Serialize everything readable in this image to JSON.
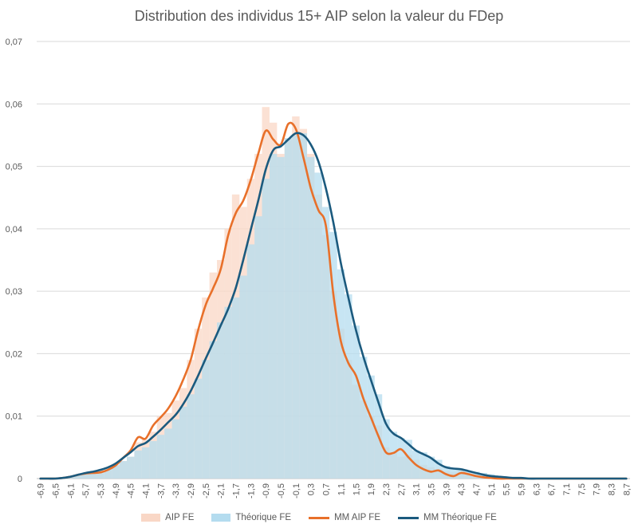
{
  "chart_data": {
    "type": "bar",
    "title": "Distribution des individus 15+ AIP selon la valeur du FDep",
    "xlabel": "",
    "ylabel": "",
    "ylim": [
      0,
      0.07
    ],
    "y_ticks": [
      "0",
      "0,01",
      "0,02",
      "0,03",
      "0,04",
      "0,05",
      "0,06",
      "0,07"
    ],
    "x_tick_labels": [
      "-6,9",
      "-6,5",
      "-6,1",
      "-5,7",
      "-5,3",
      "-4,9",
      "-4,5",
      "-4,1",
      "-3,7",
      "-3,3",
      "-2,9",
      "-2,5",
      "-2,1",
      "-1,7",
      "-1,3",
      "-0,9",
      "-0,5",
      "-0,1",
      "0,3",
      "0,7",
      "1,1",
      "1,5",
      "1,9",
      "2,3",
      "2,7",
      "3,1",
      "3,5",
      "3,9",
      "4,3",
      "4,7",
      "5,1",
      "5,5",
      "5,9",
      "6,3",
      "6,7",
      "7,1",
      "7,5",
      "7,9",
      "8,3",
      "8,7"
    ],
    "x": [
      -6.9,
      -6.7,
      -6.5,
      -6.3,
      -6.1,
      -5.9,
      -5.7,
      -5.5,
      -5.3,
      -5.1,
      -4.9,
      -4.7,
      -4.5,
      -4.3,
      -4.1,
      -3.9,
      -3.7,
      -3.5,
      -3.3,
      -3.1,
      -2.9,
      -2.7,
      -2.5,
      -2.3,
      -2.1,
      -1.9,
      -1.7,
      -1.5,
      -1.3,
      -1.1,
      -0.9,
      -0.7,
      -0.5,
      -0.3,
      -0.1,
      0.1,
      0.3,
      0.5,
      0.7,
      0.9,
      1.1,
      1.3,
      1.5,
      1.7,
      1.9,
      2.1,
      2.3,
      2.5,
      2.7,
      2.9,
      3.1,
      3.3,
      3.5,
      3.7,
      3.9,
      4.1,
      4.3,
      4.5,
      4.7,
      4.9,
      5.1,
      5.3,
      5.5,
      5.7,
      5.9,
      6.1,
      6.3,
      6.5,
      6.7,
      6.9,
      7.1,
      7.3,
      7.5,
      7.7,
      7.9,
      8.1,
      8.3,
      8.5,
      8.7
    ],
    "series": [
      {
        "name": "AIP FE",
        "type": "bar",
        "color": "#f9d7c6",
        "values": [
          0,
          0,
          0,
          0.0002,
          0.0004,
          0.0006,
          0.0009,
          0.001,
          0.0008,
          0.0013,
          0.002,
          0.0028,
          0.0035,
          0.0058,
          0.0062,
          0.0075,
          0.01,
          0.0105,
          0.0125,
          0.0145,
          0.019,
          0.024,
          0.029,
          0.033,
          0.035,
          0.04,
          0.0455,
          0.0435,
          0.048,
          0.052,
          0.0595,
          0.057,
          0.052,
          0.0545,
          0.058,
          0.056,
          0.052,
          0.0455,
          0.039,
          0.03,
          0.024,
          0.019,
          0.015,
          0.0125,
          0.01,
          0.0085,
          0.005,
          0.0042,
          0.0035,
          0.0038,
          0.003,
          0.0022,
          0.0018,
          0.0015,
          0.0012,
          0.001,
          0.0012,
          0.0008,
          0.0006,
          0.0004,
          0.0003,
          0.0002,
          0.0001,
          0.0001,
          0.0001,
          0.0001,
          0,
          0,
          0,
          0,
          0,
          0,
          0,
          0,
          0,
          0,
          0,
          0,
          0
        ]
      },
      {
        "name": "Théorique FE",
        "type": "bar",
        "color": "#b4dcef",
        "values": [
          0,
          0,
          0,
          0.0002,
          0.0004,
          0.0006,
          0.0009,
          0.0011,
          0.0014,
          0.0018,
          0.0022,
          0.0028,
          0.0035,
          0.0045,
          0.005,
          0.006,
          0.007,
          0.008,
          0.0095,
          0.0115,
          0.0135,
          0.016,
          0.019,
          0.022,
          0.025,
          0.0275,
          0.029,
          0.0325,
          0.0375,
          0.042,
          0.048,
          0.052,
          0.0515,
          0.0545,
          0.055,
          0.0553,
          0.0515,
          0.049,
          0.0435,
          0.0395,
          0.0335,
          0.0295,
          0.0245,
          0.0195,
          0.0165,
          0.0135,
          0.0095,
          0.0075,
          0.0065,
          0.0062,
          0.0045,
          0.0042,
          0.0035,
          0.003,
          0.002,
          0.0015,
          0.0015,
          0.0012,
          0.0011,
          0.0009,
          0.0007,
          0.0004,
          0.0003,
          0.0002,
          0.0001,
          0.0001,
          0,
          0,
          0,
          0,
          0,
          0,
          0,
          0,
          0,
          0,
          0,
          0,
          0
        ]
      },
      {
        "name": "MM AIP FE",
        "type": "line",
        "color": "#e8702a",
        "values": [
          0,
          0,
          0,
          0.0001,
          0.0003,
          0.0006,
          0.0008,
          0.0009,
          0.001,
          0.0014,
          0.0021,
          0.0033,
          0.0045,
          0.0066,
          0.0064,
          0.0085,
          0.0098,
          0.0112,
          0.0132,
          0.0158,
          0.019,
          0.0238,
          0.0278,
          0.0305,
          0.0335,
          0.039,
          0.0425,
          0.0445,
          0.0478,
          0.052,
          0.0557,
          0.0543,
          0.0535,
          0.0568,
          0.056,
          0.0515,
          0.0465,
          0.043,
          0.0405,
          0.0295,
          0.022,
          0.0185,
          0.0165,
          0.0128,
          0.0098,
          0.0068,
          0.0042,
          0.0041,
          0.0047,
          0.0034,
          0.0022,
          0.0015,
          0.0011,
          0.0013,
          0.0007,
          0.0004,
          0.0009,
          0.0007,
          0.0004,
          0.0002,
          0.0001,
          0,
          0,
          0,
          0,
          0,
          0,
          0,
          0,
          0,
          0,
          0,
          0,
          0,
          0,
          0,
          0,
          0,
          0
        ]
      },
      {
        "name": "MM Théorique FE",
        "type": "line",
        "color": "#1b5a7e",
        "values": [
          0,
          0,
          0,
          0.0001,
          0.0003,
          0.0006,
          0.0009,
          0.0011,
          0.0014,
          0.0018,
          0.0024,
          0.0033,
          0.0042,
          0.0052,
          0.0057,
          0.0067,
          0.0078,
          0.009,
          0.0102,
          0.0119,
          0.014,
          0.0165,
          0.0192,
          0.0218,
          0.0245,
          0.0272,
          0.0305,
          0.035,
          0.0398,
          0.0445,
          0.0495,
          0.0526,
          0.0532,
          0.0543,
          0.0553,
          0.055,
          0.0535,
          0.0508,
          0.0465,
          0.041,
          0.0345,
          0.029,
          0.0238,
          0.0195,
          0.0158,
          0.0122,
          0.0088,
          0.0072,
          0.0065,
          0.0055,
          0.0045,
          0.0039,
          0.0033,
          0.0024,
          0.0018,
          0.0016,
          0.0015,
          0.0012,
          0.0009,
          0.0006,
          0.0004,
          0.0003,
          0.0002,
          0.0001,
          0.0001,
          0,
          0,
          0,
          0,
          0,
          0,
          0,
          0,
          0,
          0,
          0,
          0,
          0,
          0
        ]
      }
    ],
    "legend": [
      "AIP FE",
      "Théorique FE",
      "MM AIP FE",
      "MM Théorique FE"
    ],
    "legend_position": "bottom",
    "grid": true
  }
}
